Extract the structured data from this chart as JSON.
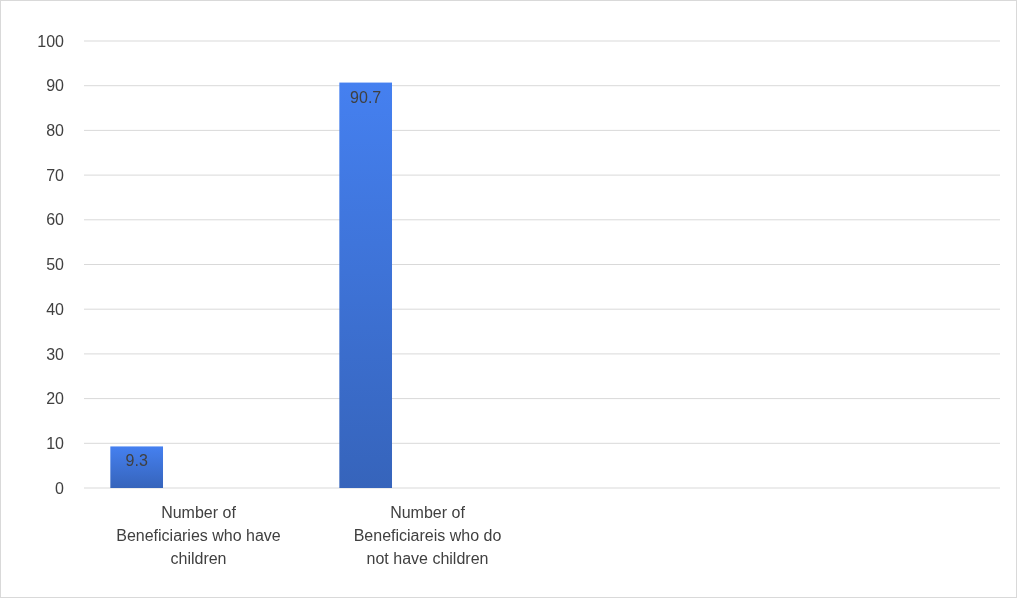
{
  "chart_data": {
    "type": "bar",
    "categories": [
      "Number of Beneficiaries who have children",
      "Number of Beneficiareis who do not have children",
      null,
      null
    ],
    "values": [
      9.3,
      90.7,
      null,
      null
    ],
    "color": "#3a6bc9",
    "ylim": [
      0,
      100
    ],
    "yticks": [
      0,
      10,
      20,
      30,
      40,
      50,
      60,
      70,
      80,
      90,
      100
    ],
    "grid": "y",
    "data_labels": true
  }
}
